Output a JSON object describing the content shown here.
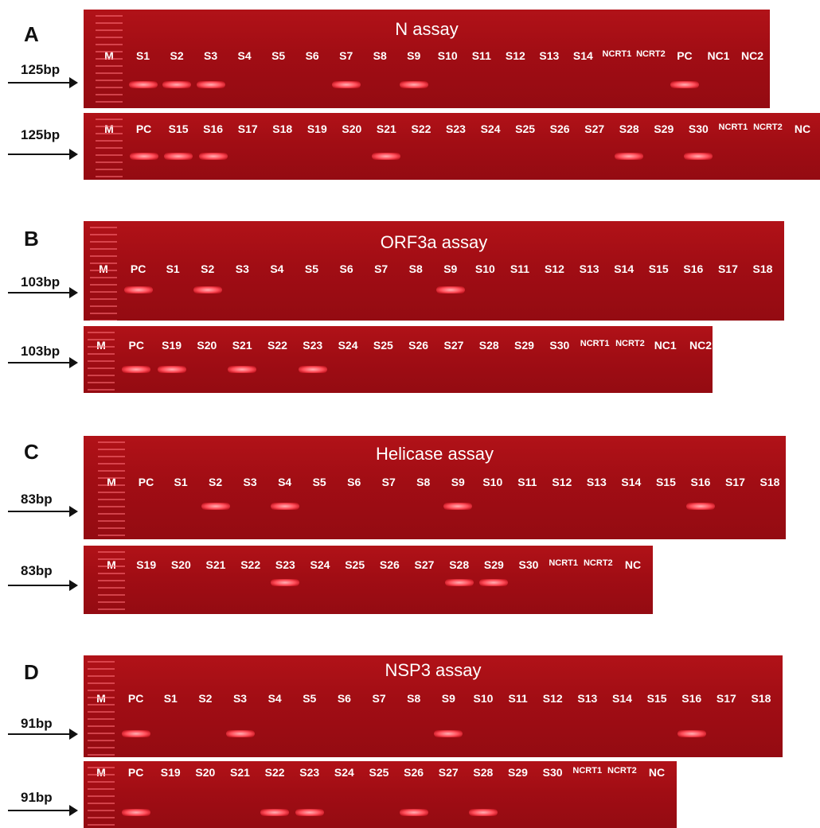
{
  "panels": [
    {
      "letter": "A",
      "title": "N assay",
      "size_label": "125bp",
      "rows": [
        {
          "lanes": [
            "M",
            "S1",
            "S2",
            "S3",
            "S4",
            "S5",
            "S6",
            "S7",
            "S8",
            "S9",
            "S10",
            "S11",
            "S12",
            "S13",
            "S14",
            "NCRT1",
            "NCRT2",
            "PC",
            "NC1",
            "NC2"
          ],
          "bands": [
            "S1",
            "S2",
            "S3",
            "S7",
            "S9",
            "PC"
          ]
        },
        {
          "lanes": [
            "M",
            "PC",
            "S15",
            "S16",
            "S17",
            "S18",
            "S19",
            "S20",
            "S21",
            "S22",
            "S23",
            "S24",
            "S25",
            "S26",
            "S27",
            "S28",
            "S29",
            "S30",
            "NCRT1",
            "NCRT2",
            "NC"
          ],
          "bands": [
            "PC",
            "S15",
            "S16",
            "S21",
            "S28",
            "S30"
          ]
        }
      ]
    },
    {
      "letter": "B",
      "title": "ORF3a assay",
      "size_label": "103bp",
      "rows": [
        {
          "lanes": [
            "M",
            "PC",
            "S1",
            "S2",
            "S3",
            "S4",
            "S5",
            "S6",
            "S7",
            "S8",
            "S9",
            "S10",
            "S11",
            "S12",
            "S13",
            "S14",
            "S15",
            "S16",
            "S17",
            "S18"
          ],
          "bands": [
            "PC",
            "S2",
            "S9"
          ]
        },
        {
          "lanes": [
            "M",
            "PC",
            "S19",
            "S20",
            "S21",
            "S22",
            "S23",
            "S24",
            "S25",
            "S26",
            "S27",
            "S28",
            "S29",
            "S30",
            "NCRT1",
            "NCRT2",
            "NC1",
            "NC2"
          ],
          "bands": [
            "PC",
            "S19",
            "S21",
            "S23"
          ]
        }
      ]
    },
    {
      "letter": "C",
      "title": "Helicase assay",
      "size_label": "83bp",
      "rows": [
        {
          "lanes": [
            "M",
            "PC",
            "S1",
            "S2",
            "S3",
            "S4",
            "S5",
            "S6",
            "S7",
            "S8",
            "S9",
            "S10",
            "S11",
            "S12",
            "S13",
            "S14",
            "S15",
            "S16",
            "S17",
            "S18"
          ],
          "bands": [
            "S2",
            "S4",
            "S9",
            "S16"
          ]
        },
        {
          "lanes": [
            "M",
            "S19",
            "S20",
            "S21",
            "S22",
            "S23",
            "S24",
            "S25",
            "S26",
            "S27",
            "S28",
            "S29",
            "S30",
            "NCRT1",
            "NCRT2",
            "NC"
          ],
          "bands": [
            "S23",
            "S28",
            "S29"
          ]
        }
      ]
    },
    {
      "letter": "D",
      "title": "NSP3 assay",
      "size_label": "91bp",
      "rows": [
        {
          "lanes": [
            "M",
            "PC",
            "S1",
            "S2",
            "S3",
            "S4",
            "S5",
            "S6",
            "S7",
            "S8",
            "S9",
            "S10",
            "S11",
            "S12",
            "S13",
            "S14",
            "S15",
            "S16",
            "S17",
            "S18"
          ],
          "bands": [
            "PC",
            "S3",
            "S9",
            "S16"
          ]
        },
        {
          "lanes": [
            "M",
            "PC",
            "S19",
            "S20",
            "S21",
            "S22",
            "S23",
            "S24",
            "S25",
            "S26",
            "S27",
            "S28",
            "S29",
            "S30",
            "NCRT1",
            "NCRT2",
            "NC"
          ],
          "bands": [
            "PC",
            "S22",
            "S23",
            "S26",
            "S28"
          ]
        }
      ]
    }
  ]
}
